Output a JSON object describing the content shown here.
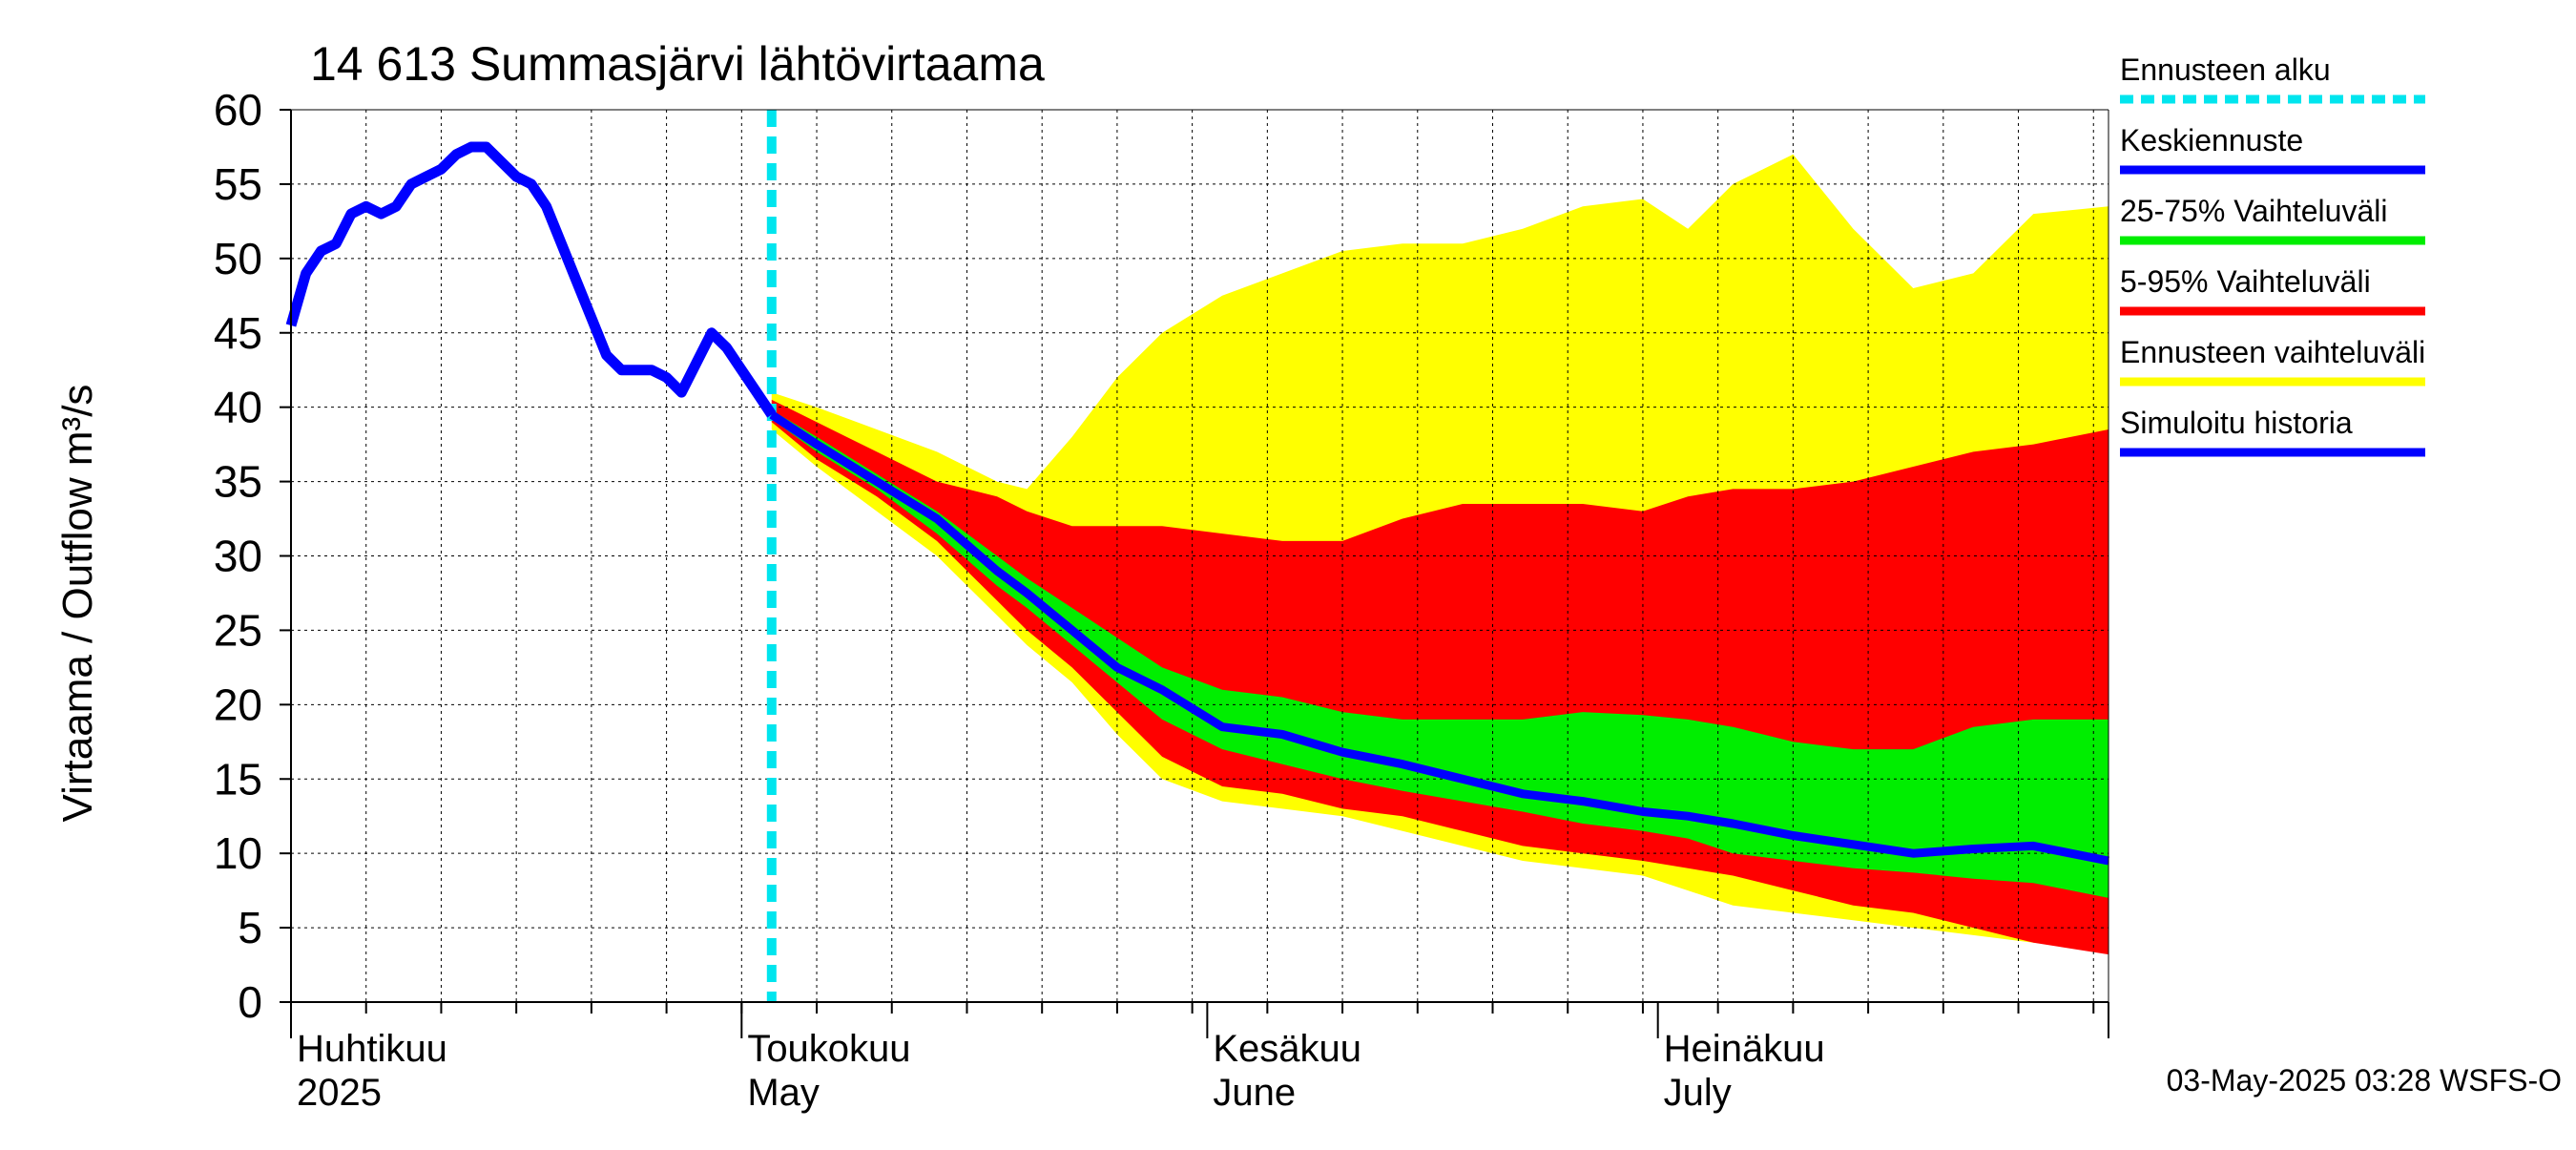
{
  "chart_data": {
    "type": "area",
    "title": "14 613 Summasjärvi lähtövirtaama",
    "ylabel": "Virtaama / Outflow    m³/s",
    "ylim": [
      0,
      60
    ],
    "yticks": [
      0,
      5,
      10,
      15,
      20,
      25,
      30,
      35,
      40,
      45,
      50,
      55,
      60
    ],
    "xlim": [
      "2025-04-01",
      "2025-07-31"
    ],
    "month_labels": [
      {
        "date": "2025-04-01",
        "fi": "Huhtikuu",
        "en": "2025"
      },
      {
        "date": "2025-05-01",
        "fi": "Toukokuu",
        "en": "May"
      },
      {
        "date": "2025-06-01",
        "fi": "Kesäkuu",
        "en": "June"
      },
      {
        "date": "2025-07-01",
        "fi": "Heinäkuu",
        "en": "July"
      }
    ],
    "grid": true,
    "forecast_start": "2025-05-03",
    "footer": "03-May-2025 03:28 WSFS-O",
    "colors": {
      "forecast_start": "#00e5ee",
      "median": "#0000ff",
      "band_25_75": "#00ee00",
      "band_5_95": "#ff0000",
      "band_full": "#ffff00",
      "history": "#0000ff",
      "grid": "#000000"
    },
    "legend": {
      "placement": "right",
      "items": [
        {
          "label": "Ennusteen alku",
          "key": "forecast_start",
          "style": "dashed"
        },
        {
          "label": "Keskiennuste",
          "key": "median",
          "style": "solid"
        },
        {
          "label": "25-75% Vaihteluväli",
          "key": "band_25_75",
          "style": "solid"
        },
        {
          "label": "5-95% Vaihteluväli",
          "key": "band_5_95",
          "style": "solid"
        },
        {
          "label": "Ennusteen vaihteluväli",
          "key": "band_full",
          "style": "solid"
        },
        {
          "label": "Simuloitu historia",
          "key": "history",
          "style": "solid"
        }
      ]
    },
    "history": {
      "x": [
        "2025-04-01",
        "2025-04-02",
        "2025-04-03",
        "2025-04-04",
        "2025-04-05",
        "2025-04-06",
        "2025-04-07",
        "2025-04-08",
        "2025-04-09",
        "2025-04-10",
        "2025-04-11",
        "2025-04-12",
        "2025-04-13",
        "2025-04-14",
        "2025-04-15",
        "2025-04-16",
        "2025-04-17",
        "2025-04-18",
        "2025-04-19",
        "2025-04-20",
        "2025-04-21",
        "2025-04-22",
        "2025-04-23",
        "2025-04-24",
        "2025-04-25",
        "2025-04-26",
        "2025-04-27",
        "2025-04-28",
        "2025-04-29",
        "2025-04-30",
        "2025-05-01",
        "2025-05-02",
        "2025-05-03"
      ],
      "y": [
        45.5,
        49,
        50.5,
        51,
        53,
        53.5,
        53,
        53.5,
        55,
        55.5,
        56,
        57,
        57.5,
        57.5,
        56.5,
        55.5,
        55,
        53.5,
        51,
        48.5,
        46,
        43.5,
        42.5,
        42.5,
        42.5,
        42,
        41,
        43,
        45,
        44,
        42.5,
        41,
        39.5
      ]
    },
    "forecast": {
      "x": [
        "2025-05-03",
        "2025-05-06",
        "2025-05-10",
        "2025-05-14",
        "2025-05-18",
        "2025-05-20",
        "2025-05-23",
        "2025-05-26",
        "2025-05-29",
        "2025-06-02",
        "2025-06-06",
        "2025-06-10",
        "2025-06-14",
        "2025-06-18",
        "2025-06-22",
        "2025-06-26",
        "2025-06-30",
        "2025-07-03",
        "2025-07-06",
        "2025-07-10",
        "2025-07-14",
        "2025-07-18",
        "2025-07-22",
        "2025-07-26",
        "2025-07-31"
      ],
      "median": [
        39.5,
        37.5,
        35,
        32.5,
        29,
        27.5,
        25,
        22.5,
        21,
        18.5,
        18,
        16.8,
        16,
        15,
        14,
        13.5,
        12.8,
        12.5,
        12,
        11.2,
        10.6,
        10,
        10.3,
        10.5,
        9.5
      ],
      "p25": [
        39.2,
        37,
        34.5,
        31.5,
        28,
        26.5,
        24,
        21.5,
        19,
        17,
        16,
        15,
        14.2,
        13.5,
        12.8,
        12,
        11.5,
        11,
        10,
        9.5,
        9,
        8.7,
        8.3,
        8,
        7
      ],
      "p75": [
        39.8,
        38,
        35.5,
        33,
        30,
        28.5,
        26.5,
        24.5,
        22.5,
        21,
        20.5,
        19.5,
        19,
        19,
        19,
        19.5,
        19.3,
        19,
        18.5,
        17.5,
        17,
        17,
        18.5,
        19,
        19
      ],
      "p5": [
        39,
        36.5,
        34,
        31,
        27,
        25,
        22.5,
        19.5,
        16.5,
        14.5,
        14,
        13,
        12.5,
        11.5,
        10.5,
        10,
        9.5,
        9,
        8.5,
        7.5,
        6.5,
        6,
        5,
        4,
        3.2
      ],
      "p95": [
        40.5,
        39,
        37,
        35,
        34,
        33,
        32,
        32,
        32,
        31.5,
        31,
        31,
        32.5,
        33.5,
        33.5,
        33.5,
        33,
        34,
        34.5,
        34.5,
        35,
        36,
        37,
        37.5,
        38.5
      ],
      "min": [
        38.5,
        36,
        33,
        30,
        26,
        24,
        21.5,
        18,
        15,
        13.5,
        13,
        12.5,
        11.5,
        10.5,
        9.5,
        9,
        8.5,
        7.5,
        6.5,
        6,
        5.5,
        5,
        4.5,
        4,
        3.5
      ],
      "max": [
        41,
        40,
        38.5,
        37,
        35,
        34.5,
        38,
        42,
        45,
        47.5,
        49,
        50.5,
        51,
        51,
        52,
        53.5,
        54,
        52,
        55,
        57,
        52,
        48,
        49,
        53,
        53.5
      ]
    }
  }
}
